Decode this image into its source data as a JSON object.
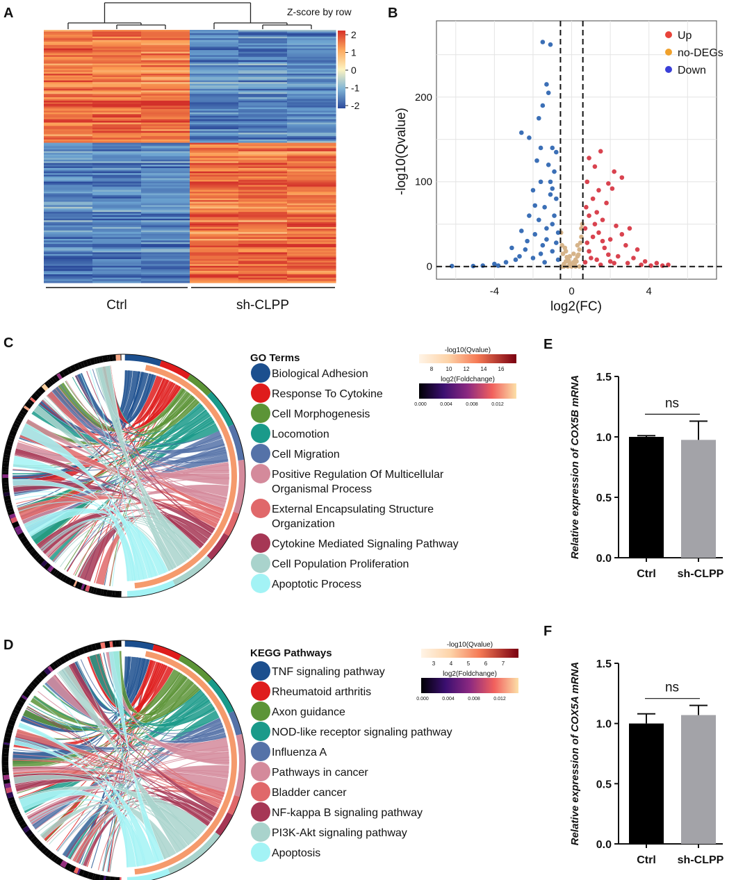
{
  "panels": {
    "A": "A",
    "B": "B",
    "C": "C",
    "D": "D",
    "E": "E",
    "F": "F"
  },
  "chart_data": [
    {
      "panel": "A",
      "type": "heatmap",
      "title": "Z-score by row",
      "colorbar_ticks": [
        "2",
        "1",
        "0",
        "-1",
        "-2"
      ],
      "colorbar_range": [
        -2,
        2
      ],
      "groups": [
        "Ctrl",
        "sh-CLPP"
      ],
      "columns_per_group": 3,
      "cluster_split_fraction": 0.45
    },
    {
      "panel": "B",
      "type": "scatter",
      "xlabel": "log2(FC)",
      "ylabel": "-log10(Qvalue)",
      "xlim": [
        -7,
        7.5
      ],
      "ylim": [
        -15,
        290
      ],
      "xticks": [
        -4,
        0,
        4
      ],
      "yticks": [
        0,
        100,
        200
      ],
      "thresholds_x": [
        -0.58,
        0.58
      ],
      "threshold_y": 0,
      "legend": [
        {
          "name": "Up",
          "color": "#e8433a"
        },
        {
          "name": "no-DEGs",
          "color": "#f0a12c"
        },
        {
          "name": "Down",
          "color": "#3a3fd8"
        }
      ],
      "series": [
        {
          "name": "Up",
          "color": "#d9434f",
          "points": [
            [
              0.9,
              128
            ],
            [
              1.5,
              136
            ],
            [
              1.2,
              118
            ],
            [
              2.2,
              112
            ],
            [
              2.6,
              105
            ],
            [
              2.1,
              92
            ],
            [
              1.9,
              98
            ],
            [
              0.8,
              100
            ],
            [
              1.1,
              80
            ],
            [
              0.9,
              60
            ],
            [
              1.6,
              55
            ],
            [
              2.3,
              48
            ],
            [
              3.0,
              45
            ],
            [
              1.4,
              40
            ],
            [
              2.0,
              32
            ],
            [
              2.8,
              25
            ],
            [
              3.4,
              20
            ],
            [
              1.1,
              35
            ],
            [
              1.7,
              22
            ],
            [
              0.9,
              18
            ],
            [
              2.4,
              12
            ],
            [
              3.8,
              6
            ],
            [
              4.4,
              4
            ],
            [
              5.0,
              2
            ],
            [
              4.7,
              1
            ],
            [
              1.3,
              8
            ],
            [
              2.0,
              6
            ],
            [
              0.7,
              5
            ],
            [
              1.6,
              30
            ],
            [
              2.6,
              38
            ],
            [
              1.3,
              64
            ],
            [
              1.8,
              75
            ],
            [
              0.7,
              45
            ],
            [
              1.0,
              10
            ],
            [
              3.2,
              10
            ],
            [
              2.2,
              4
            ],
            [
              1.5,
              2
            ],
            [
              0.8,
              28
            ],
            [
              1.2,
              50
            ],
            [
              2.9,
              4
            ],
            [
              3.6,
              2
            ],
            [
              4.1,
              1
            ],
            [
              1.9,
              14
            ],
            [
              0.75,
              70
            ],
            [
              1.4,
              90
            ]
          ]
        },
        {
          "name": "no-DEGs",
          "color": "#d6b48a",
          "points": [
            [
              -0.5,
              0
            ],
            [
              -0.4,
              3
            ],
            [
              -0.3,
              6
            ],
            [
              -0.2,
              9
            ],
            [
              -0.1,
              4
            ],
            [
              0.0,
              2
            ],
            [
              0.1,
              5
            ],
            [
              0.2,
              8
            ],
            [
              0.3,
              12
            ],
            [
              0.4,
              20
            ],
            [
              0.5,
              35
            ],
            [
              0.45,
              28
            ],
            [
              -0.45,
              15
            ],
            [
              -0.35,
              22
            ],
            [
              -0.25,
              11
            ],
            [
              -0.15,
              7
            ],
            [
              0.05,
              1
            ],
            [
              0.15,
              3
            ],
            [
              0.25,
              6
            ],
            [
              0.35,
              14
            ],
            [
              0.5,
              45
            ],
            [
              0.55,
              50
            ],
            [
              -0.5,
              25
            ],
            [
              -0.55,
              40
            ],
            [
              0.0,
              0
            ],
            [
              0.2,
              0
            ],
            [
              -0.2,
              0
            ],
            [
              0.4,
              0
            ],
            [
              -0.4,
              0
            ],
            [
              -0.3,
              18
            ],
            [
              0.3,
              25
            ],
            [
              0.1,
              15
            ],
            [
              -0.1,
              12
            ]
          ]
        },
        {
          "name": "Down",
          "color": "#3b6fb6",
          "points": [
            [
              -1.5,
              265
            ],
            [
              -1.1,
              262
            ],
            [
              -1.3,
              215
            ],
            [
              -1.2,
              205
            ],
            [
              -1.5,
              190
            ],
            [
              -1.7,
              175
            ],
            [
              -2.6,
              158
            ],
            [
              -2.2,
              152
            ],
            [
              -1.6,
              140
            ],
            [
              -1.0,
              140
            ],
            [
              -0.8,
              135
            ],
            [
              -1.8,
              125
            ],
            [
              -1.2,
              120
            ],
            [
              -0.9,
              112
            ],
            [
              -1.6,
              100
            ],
            [
              -2.0,
              90
            ],
            [
              -1.1,
              85
            ],
            [
              -0.8,
              80
            ],
            [
              -1.4,
              70
            ],
            [
              -2.2,
              60
            ],
            [
              -1.7,
              55
            ],
            [
              -1.0,
              50
            ],
            [
              -2.6,
              42
            ],
            [
              -1.9,
              38
            ],
            [
              -1.3,
              32
            ],
            [
              -0.8,
              28
            ],
            [
              -3.1,
              22
            ],
            [
              -2.4,
              20
            ],
            [
              -1.6,
              15
            ],
            [
              -2.9,
              8
            ],
            [
              -3.4,
              5
            ],
            [
              -4.0,
              3
            ],
            [
              -4.6,
              1
            ],
            [
              -5.1,
              0.5
            ],
            [
              -6.2,
              0.5
            ],
            [
              -2.0,
              10
            ],
            [
              -1.0,
              18
            ],
            [
              -0.7,
              8
            ],
            [
              -1.4,
              5
            ],
            [
              -2.3,
              30
            ],
            [
              -0.9,
              60
            ],
            [
              -1.3,
              45
            ],
            [
              -1.1,
              100
            ],
            [
              -1.9,
              72
            ],
            [
              -1.0,
              92
            ],
            [
              -0.7,
              40
            ],
            [
              -2.7,
              12
            ],
            [
              -1.5,
              25
            ],
            [
              -3.8,
              1
            ]
          ]
        }
      ]
    },
    {
      "panel": "C",
      "type": "chord",
      "legend_title": "GO Terms",
      "terms": [
        {
          "label": "Biological Adhesion",
          "color": "#1c4f8e"
        },
        {
          "label": "Response To Cytokine",
          "color": "#df1c1c"
        },
        {
          "label": "Cell Morphogenesis",
          "color": "#5c9437"
        },
        {
          "label": "Locomotion",
          "color": "#1a9a8a"
        },
        {
          "label": "Cell Migration",
          "color": "#5572a8"
        },
        {
          "label": "Positive Regulation Of Multicellular\nOrganismal Process",
          "color": "#d48a9b"
        },
        {
          "label": "External Encapsulating Structure\nOrganization",
          "color": "#e0686a"
        },
        {
          "label": "Cytokine Mediated Signaling Pathway",
          "color": "#a63755"
        },
        {
          "label": "Cell Population Proliferation",
          "color": "#a9d3cc"
        },
        {
          "label": "Apoptotic Process",
          "color": "#a3f3f5"
        }
      ],
      "shares": [
        0.075,
        0.065,
        0.055,
        0.08,
        0.075,
        0.11,
        0.05,
        0.06,
        0.09,
        0.1
      ],
      "qvalue_scale": {
        "title": "-log10(Qvalue)",
        "ticks": [
          "8",
          "10",
          "12",
          "14",
          "16"
        ]
      },
      "fc_scale": {
        "title": "log2(Foldchange)",
        "ticks": [
          "0.000",
          "0.004",
          "0.008",
          "0.012"
        ]
      }
    },
    {
      "panel": "D",
      "type": "chord",
      "legend_title": "KEGG Pathways",
      "terms": [
        {
          "label": "TNF signaling pathway",
          "color": "#1c4f8e"
        },
        {
          "label": "Rheumatoid arthritis",
          "color": "#df1c1c"
        },
        {
          "label": "Axon guidance",
          "color": "#5c9437"
        },
        {
          "label": "NOD-like receptor signaling pathway",
          "color": "#1a9a8a"
        },
        {
          "label": "Influenza A",
          "color": "#5572a8"
        },
        {
          "label": "Pathways in cancer",
          "color": "#d48a9b"
        },
        {
          "label": "Bladder cancer",
          "color": "#e0686a"
        },
        {
          "label": "NF-kappa B signaling pathway",
          "color": "#a63755"
        },
        {
          "label": "PI3K-Akt signaling pathway",
          "color": "#a9d3cc"
        },
        {
          "label": "Apoptosis",
          "color": "#a3f3f5"
        }
      ],
      "shares": [
        0.06,
        0.06,
        0.08,
        0.08,
        0.05,
        0.13,
        0.04,
        0.05,
        0.13,
        0.09
      ],
      "qvalue_scale": {
        "title": "-log10(Qvalue)",
        "ticks": [
          "3",
          "4",
          "5",
          "6",
          "7"
        ]
      },
      "fc_scale": {
        "title": "log2(Foldchange)",
        "ticks": [
          "0.000",
          "0.004",
          "0.008",
          "0.012"
        ]
      }
    },
    {
      "panel": "E",
      "type": "bar",
      "ylabel": "Relative expression of COX5B mRNA",
      "categories": [
        "Ctrl",
        "sh-CLPP"
      ],
      "values": [
        1.0,
        0.975
      ],
      "errors": [
        0.01,
        0.155
      ],
      "colors": [
        "#000000",
        "#a3a3a8"
      ],
      "ylim": [
        0,
        1.5
      ],
      "yticks": [
        "0.0",
        "0.5",
        "1.0",
        "1.5"
      ],
      "significance": "ns"
    },
    {
      "panel": "F",
      "type": "bar",
      "ylabel": "Relative expression of COX5A mRNA",
      "categories": [
        "Ctrl",
        "sh-CLPP"
      ],
      "values": [
        1.0,
        1.07
      ],
      "errors": [
        0.08,
        0.08
      ],
      "colors": [
        "#000000",
        "#a3a3a8"
      ],
      "ylim": [
        0,
        1.5
      ],
      "yticks": [
        "0.0",
        "0.5",
        "1.0",
        "1.5"
      ],
      "significance": "ns"
    }
  ]
}
